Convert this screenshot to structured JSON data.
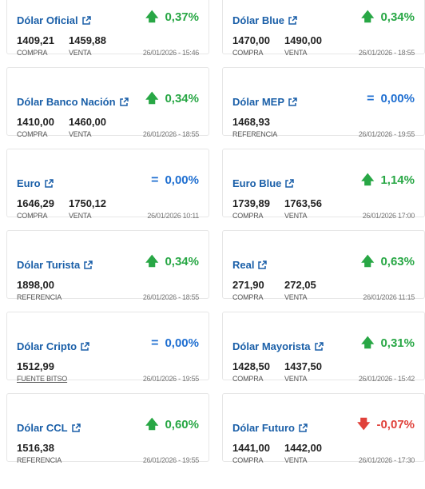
{
  "colors": {
    "title": "#1a5fa8",
    "up": "#28a745",
    "equal": "#1f6fd1",
    "down": "#e0413a"
  },
  "cards": [
    {
      "title": "Dólar Oficial",
      "dir": "up",
      "variation": "0,37%",
      "values": [
        {
          "num": "1409,21",
          "label": "COMPRA"
        },
        {
          "num": "1459,88",
          "label": "VENTA"
        }
      ],
      "time": "26/01/2026 - 15:46"
    },
    {
      "title": "Dólar Blue",
      "dir": "up",
      "variation": "0,34%",
      "values": [
        {
          "num": "1470,00",
          "label": "COMPRA"
        },
        {
          "num": "1490,00",
          "label": "VENTA"
        }
      ],
      "time": "26/01/2026 - 18:55"
    },
    {
      "title": "Dólar Banco Nación",
      "dir": "up",
      "variation": "0,34%",
      "values": [
        {
          "num": "1410,00",
          "label": "COMPRA"
        },
        {
          "num": "1460,00",
          "label": "VENTA"
        }
      ],
      "time": "26/01/2026 - 18:55"
    },
    {
      "title": "Dólar MEP",
      "dir": "eq",
      "variation": "0,00%",
      "values": [
        {
          "num": "1468,93",
          "label": "REFERENCIA"
        }
      ],
      "time": "26/01/2026 - 19:55"
    },
    {
      "title": "Euro",
      "dir": "eq",
      "variation": "0,00%",
      "values": [
        {
          "num": "1646,29",
          "label": "COMPRA"
        },
        {
          "num": "1750,12",
          "label": "VENTA"
        }
      ],
      "time": "26/01/2026 10:11"
    },
    {
      "title": "Euro Blue",
      "dir": "up",
      "variation": "1,14%",
      "values": [
        {
          "num": "1739,89",
          "label": "COMPRA"
        },
        {
          "num": "1763,56",
          "label": "VENTA"
        }
      ],
      "time": "26/01/2026 17:00"
    },
    {
      "title": "Dólar Turista",
      "dir": "up",
      "variation": "0,34%",
      "values": [
        {
          "num": "1898,00",
          "label": "REFERENCIA"
        }
      ],
      "time": "26/01/2026 - 18:55"
    },
    {
      "title": "Real",
      "dir": "up",
      "variation": "0,63%",
      "values": [
        {
          "num": "271,90",
          "label": "COMPRA"
        },
        {
          "num": "272,05",
          "label": "VENTA"
        }
      ],
      "time": "26/01/2026 11:15"
    },
    {
      "title": "Dólar Cripto",
      "dir": "eq",
      "variation": "0,00%",
      "values": [
        {
          "num": "1512,99",
          "label": "FUENTE BITSO",
          "underline": true
        }
      ],
      "time": "26/01/2026 - 19:55"
    },
    {
      "title": "Dólar Mayorista",
      "dir": "up",
      "variation": "0,31%",
      "values": [
        {
          "num": "1428,50",
          "label": "COMPRA"
        },
        {
          "num": "1437,50",
          "label": "VENTA"
        }
      ],
      "time": "26/01/2026 - 15:42"
    },
    {
      "title": "Dólar CCL",
      "dir": "up",
      "variation": "0,60%",
      "values": [
        {
          "num": "1516,38",
          "label": "REFERENCIA"
        }
      ],
      "time": "26/01/2026 - 19:55"
    },
    {
      "title": "Dólar Futuro",
      "dir": "down",
      "variation": "-0,07%",
      "values": [
        {
          "num": "1441,00",
          "label": "COMPRA"
        },
        {
          "num": "1442,00",
          "label": "VENTA"
        }
      ],
      "time": "26/01/2026 - 17:30"
    }
  ]
}
